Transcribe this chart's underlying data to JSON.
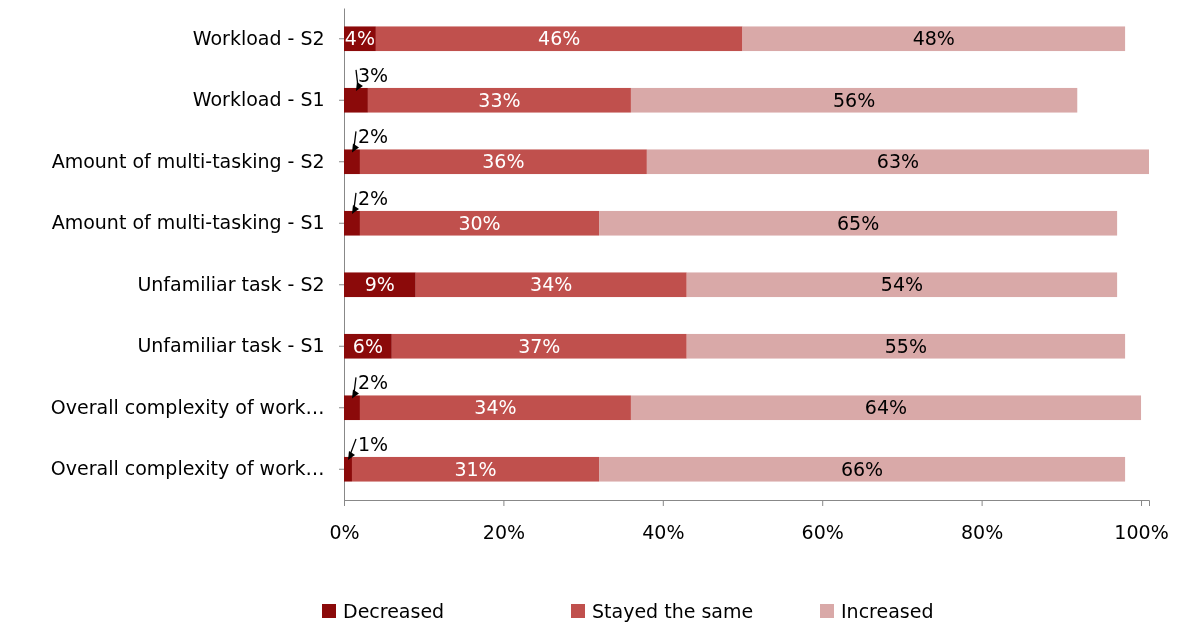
{
  "chart_data": {
    "type": "bar",
    "orientation": "horizontal",
    "stacked": true,
    "categories": [
      "Workload - S2",
      "Workload - S1",
      "Amount of multi-tasking - S2",
      "Amount of multi-tasking - S1",
      "Unfamiliar task - S2",
      "Unfamiliar task - S1",
      "Overall complexity of work…",
      "Overall complexity of work…"
    ],
    "series": [
      {
        "name": "Decreased",
        "color": "#8b0a0a",
        "values": [
          4,
          3,
          2,
          2,
          9,
          6,
          2,
          1
        ],
        "value_labels": [
          "4%",
          "3%",
          "2%",
          "2%",
          "9%",
          "6%",
          "2%",
          "1%"
        ]
      },
      {
        "name": "Stayed the same",
        "color": "#c0504d",
        "values": [
          46,
          33,
          36,
          30,
          34,
          37,
          34,
          31
        ],
        "value_labels": [
          "46%",
          "33%",
          "36%",
          "30%",
          "34%",
          "37%",
          "34%",
          "31%"
        ]
      },
      {
        "name": "Increased",
        "color": "#d9a9a8",
        "values": [
          48,
          56,
          63,
          65,
          54,
          55,
          64,
          66
        ],
        "value_labels": [
          "48%",
          "56%",
          "63%",
          "65%",
          "54%",
          "55%",
          "64%",
          "66%"
        ]
      }
    ],
    "xlim": [
      0,
      101
    ],
    "xticks": [
      {
        "value": 0,
        "label": "0%"
      },
      {
        "value": 20,
        "label": "20%"
      },
      {
        "value": 40,
        "label": "40%"
      },
      {
        "value": 60,
        "label": "60%"
      },
      {
        "value": 80,
        "label": "80%"
      },
      {
        "value": 100,
        "label": "100%"
      }
    ],
    "grid": false,
    "legend": "bottom"
  }
}
